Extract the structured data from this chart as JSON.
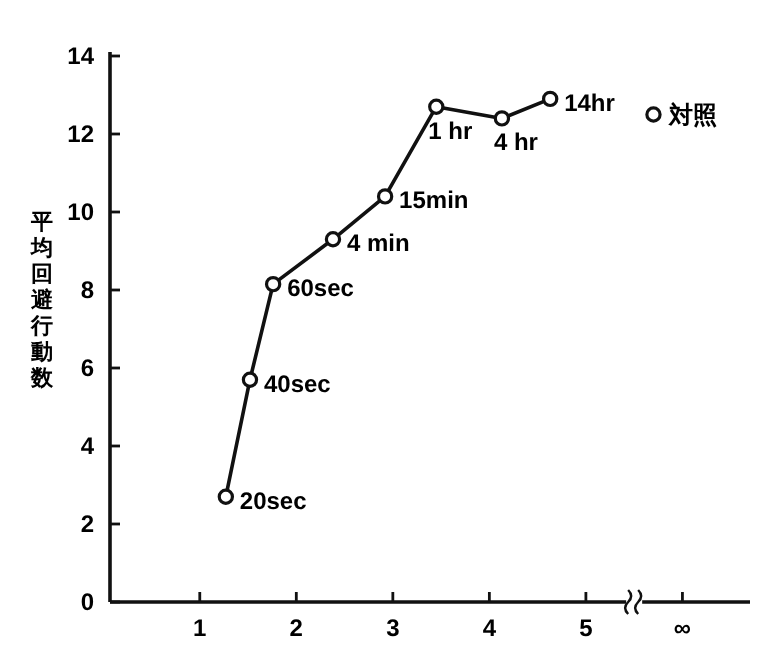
{
  "chart_data": {
    "type": "line",
    "ylabel": "平均回避行動数",
    "xlim": [
      0.07,
      6.7
    ],
    "xticks": [
      1,
      2,
      3,
      4,
      5,
      {
        "value": 6,
        "label": "∞"
      }
    ],
    "ylim": [
      0,
      14
    ],
    "yticks": [
      0,
      2,
      4,
      6,
      8,
      10,
      12,
      14
    ],
    "grid": false,
    "marker": "circle",
    "line_style": "solid",
    "series": [
      {
        "color": "#111111",
        "x": [
          1.27,
          1.52,
          1.76,
          2.38,
          2.92,
          3.45,
          4.13,
          4.63
        ],
        "values": [
          2.7,
          5.7,
          8.15,
          9.3,
          10.4,
          12.7,
          12.4,
          12.9
        ]
      },
      {
        "type": "scatter",
        "name": "対照",
        "color": "#111111",
        "x": [
          5.7
        ],
        "values": [
          12.5
        ]
      }
    ],
    "annotations": [
      {
        "text": "20sec",
        "x": 1.27,
        "y": 2.7
      },
      {
        "text": "40sec",
        "x": 1.52,
        "y": 5.7
      },
      {
        "text": "60sec",
        "x": 1.76,
        "y": 8.15
      },
      {
        "text": "4 min",
        "x": 2.38,
        "y": 9.3
      },
      {
        "text": "15min",
        "x": 2.92,
        "y": 10.4
      },
      {
        "text": "1 hr",
        "x": 3.45,
        "y": 12.7
      },
      {
        "text": "4 hr",
        "x": 4.13,
        "y": 12.4
      },
      {
        "text": "14hr",
        "x": 4.63,
        "y": 12.9
      }
    ]
  }
}
